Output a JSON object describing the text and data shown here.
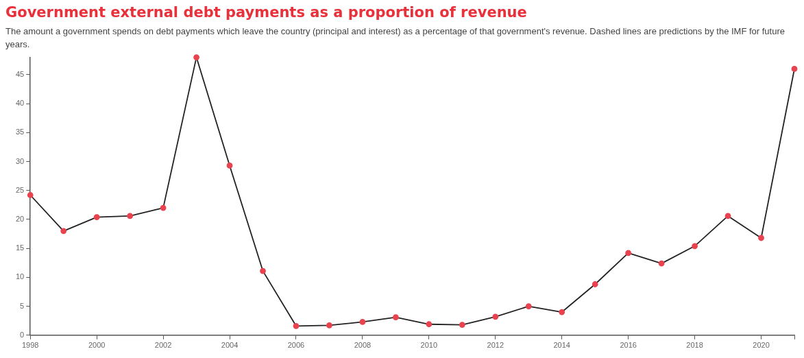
{
  "chart_data": {
    "type": "line",
    "title": "Government external debt payments as a proportion of revenue",
    "subtitle": "The amount a government spends on debt payments which leave the country (principal and interest) as a percentage of that government's revenue. Dashed lines are predictions by the IMF for future years.",
    "x": [
      1998,
      1999,
      2000,
      2001,
      2002,
      2003,
      2004,
      2005,
      2006,
      2007,
      2008,
      2009,
      2010,
      2011,
      2012,
      2013,
      2014,
      2015,
      2016,
      2017,
      2018,
      2019,
      2020,
      2021
    ],
    "series": [
      {
        "color": "#222222",
        "colors": [
          "#e8434f",
          "#e8434f",
          "#e8434f",
          "#e8434f",
          "#e8434f",
          "#e8434f",
          "#e8434f",
          "#e8434f",
          "#e8434f",
          "#e8434f",
          "#e8434f",
          "#e8434f",
          "#e8434f",
          "#e8434f",
          "#e8434f",
          "#e8434f",
          "#e8434f",
          "#e8434f",
          "#e8434f",
          "#e8434f",
          "#e8434f",
          "#e8434f",
          "#e8434f",
          "#e8434f"
        ],
        "values": [
          24.2,
          18,
          20.4,
          20.6,
          22,
          48,
          29.3,
          11.1,
          1.6,
          1.7,
          2.3,
          3.1,
          1.9,
          1.8,
          3.2,
          5,
          4,
          8.8,
          14.2,
          12.4,
          15.4,
          20.6,
          16.8,
          46
        ]
      }
    ],
    "xlim": [
      1998,
      2021
    ],
    "xticks": [
      1998,
      2000,
      2002,
      2004,
      2006,
      2008,
      2010,
      2012,
      2014,
      2016,
      2018,
      2020,
      {
        "value": 2021,
        "label": null
      }
    ],
    "ylim": [
      0,
      48
    ],
    "yticks": [
      0,
      5,
      10,
      15,
      20,
      25,
      30,
      35,
      40,
      45
    ],
    "grid": false,
    "legend": false,
    "marker": "circle",
    "line_style": "solid"
  }
}
